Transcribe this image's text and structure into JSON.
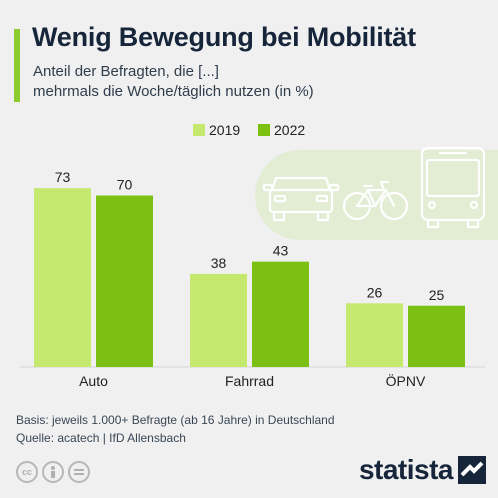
{
  "header": {
    "title": "Wenig Bewegung bei Mobilität",
    "subtitle_lines": [
      "Anteil der Befragten, die [...]",
      "mehrmals die Woche/täglich nutzen (in %)"
    ]
  },
  "chart_data": {
    "type": "bar",
    "categories": [
      "Auto",
      "Fahrrad",
      "ÖPNV"
    ],
    "series": [
      {
        "name": "2019",
        "values": [
          73,
          38,
          26
        ],
        "color": "#c5e96f"
      },
      {
        "name": "2022",
        "values": [
          70,
          43,
          25
        ],
        "color": "#7cc014"
      }
    ],
    "ylim": [
      0,
      80
    ],
    "grid": false,
    "legend": "top-center"
  },
  "footer": {
    "basis": "Basis: jeweils 1.000+ Befragte (ab 16 Jahre) in Deutschland",
    "source": "Quelle: acatech | IfD Allensbach"
  },
  "brand": {
    "logo": "statista"
  },
  "icons": [
    "car-icon",
    "bicycle-icon",
    "bus-icon",
    "cc-icon",
    "person-icon",
    "equals-icon"
  ]
}
